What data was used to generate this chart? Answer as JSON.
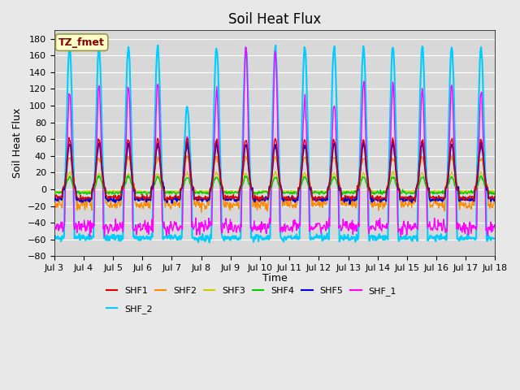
{
  "title": "Soil Heat Flux",
  "ylabel": "Soil Heat Flux",
  "xlabel": "Time",
  "ylim": [
    -80,
    190
  ],
  "yticks": [
    -80,
    -60,
    -40,
    -20,
    0,
    20,
    40,
    60,
    80,
    100,
    120,
    140,
    160,
    180
  ],
  "xtick_labels": [
    "Jul 3",
    "Jul 4",
    "Jul 5",
    "Jul 6",
    "Jul 7",
    "Jul 8",
    "Jul 9",
    "Jul 10",
    "Jul 11",
    "Jul 12",
    "Jul 13",
    "Jul 14",
    "Jul 15",
    "Jul 16",
    "Jul 17",
    "Jul 18"
  ],
  "series": {
    "SHF1": {
      "color": "#dd0000",
      "lw": 1.0,
      "zorder": 6
    },
    "SHF2": {
      "color": "#ff8800",
      "lw": 1.0,
      "zorder": 5
    },
    "SHF3": {
      "color": "#cccc00",
      "lw": 1.0,
      "zorder": 4
    },
    "SHF4": {
      "color": "#00cc00",
      "lw": 1.0,
      "zorder": 4
    },
    "SHF5": {
      "color": "#0000dd",
      "lw": 1.5,
      "zorder": 5
    },
    "SHF_1": {
      "color": "#ff00ff",
      "lw": 1.0,
      "zorder": 3
    },
    "SHF_2": {
      "color": "#00ccff",
      "lw": 1.5,
      "zorder": 2
    }
  },
  "annotation_text": "TZ_fmet",
  "annotation_color": "#8b0000",
  "annotation_bg": "#ffffcc",
  "annotation_edge": "#999944",
  "fig_bg": "#e8e8e8",
  "plot_bg": "#d8d8d8",
  "grid_color": "#ffffff",
  "title_fontsize": 12,
  "label_fontsize": 9,
  "tick_fontsize": 8,
  "legend_fontsize": 8
}
